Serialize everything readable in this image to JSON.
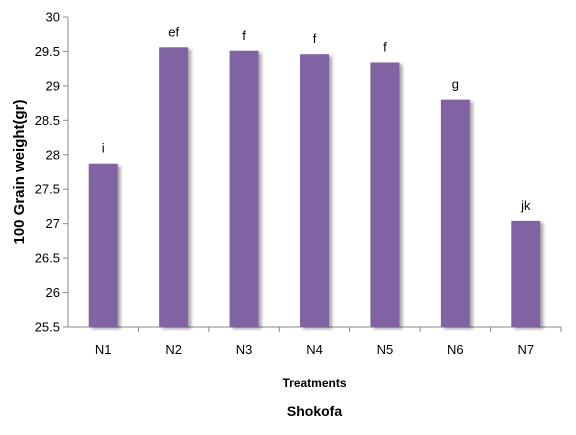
{
  "chart_data": {
    "type": "bar",
    "categories": [
      "N1",
      "N2",
      "N3",
      "N4",
      "N5",
      "N6",
      "N7"
    ],
    "values": [
      27.87,
      29.56,
      29.51,
      29.46,
      29.34,
      28.8,
      27.04
    ],
    "significance_letters": [
      "i",
      "ef",
      "f",
      "f",
      "f",
      "g",
      "jk"
    ],
    "xlabel": "Treatments",
    "ylabel": "100 Grain weight(gr)",
    "caption": "Shokofa",
    "ylim": [
      25.5,
      30
    ],
    "yticks": [
      "25.5",
      "26",
      "26.5",
      "27",
      "27.5",
      "28",
      "28.5",
      "29",
      "29.5",
      "30"
    ],
    "grid": false,
    "legend": "none",
    "bar_color": "#8064a2"
  }
}
